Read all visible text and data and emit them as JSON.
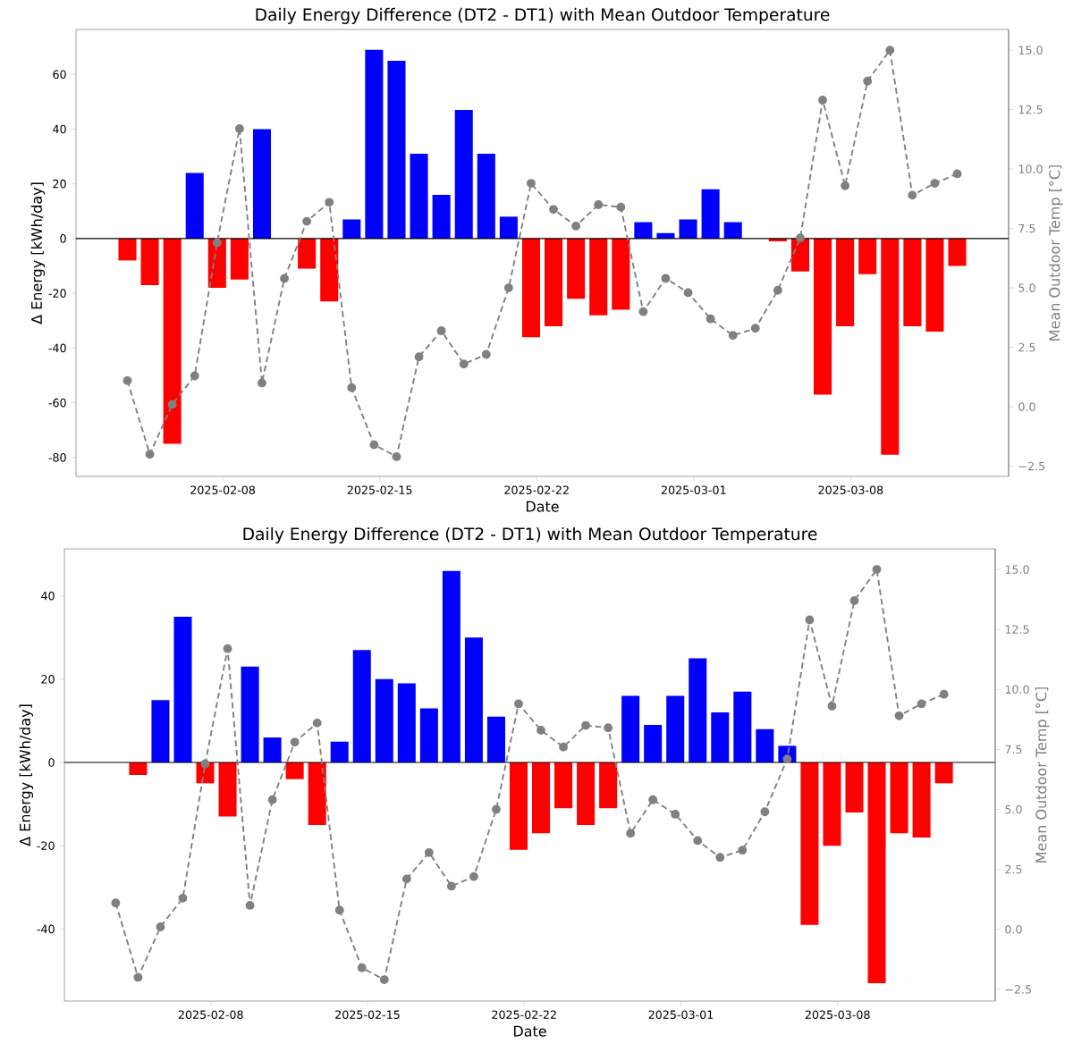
{
  "chart_data": [
    {
      "type": "bar",
      "title": "Daily Energy Difference (DT2 - DT1) with Mean Outdoor Temperature",
      "xlabel": "Date",
      "ylabel": "Δ Energy [kWh/day]",
      "y2label": "Mean Outdoor Temp [°C]",
      "x": [
        "2025-02-03T18:00",
        "2025-02-04T18:00",
        "2025-02-05T18:00",
        "2025-02-06T18:00",
        "2025-02-07T18:00",
        "2025-02-08T18:00",
        "2025-02-09T18:00",
        "2025-02-10T18:00",
        "2025-02-11T18:00",
        "2025-02-12T18:00",
        "2025-02-13T18:00",
        "2025-02-14T18:00",
        "2025-02-15T18:00",
        "2025-02-16T18:00",
        "2025-02-17T18:00",
        "2025-02-18T18:00",
        "2025-02-19T18:00",
        "2025-02-20T18:00",
        "2025-02-21T18:00",
        "2025-02-22T18:00",
        "2025-02-23T18:00",
        "2025-02-24T18:00",
        "2025-02-25T18:00",
        "2025-02-26T18:00",
        "2025-02-27T18:00",
        "2025-02-28T18:00",
        "2025-03-01T18:00",
        "2025-03-02T18:00",
        "2025-03-03T18:00",
        "2025-03-04T18:00",
        "2025-03-05T18:00",
        "2025-03-06T18:00",
        "2025-03-07T18:00",
        "2025-03-08T18:00",
        "2025-03-09T18:00",
        "2025-03-10T18:00",
        "2025-03-11T18:00",
        "2025-03-12T18:00"
      ],
      "xlim": [
        "2025-02-01T11:00",
        "2025-03-15T01:00"
      ],
      "xticks": [
        "2025-02-08",
        "2025-02-15",
        "2025-02-22",
        "2025-03-01",
        "2025-03-08"
      ],
      "ylim": [
        -86.9,
        76.4
      ],
      "yticks": [
        -80,
        -60,
        -40,
        -20,
        0,
        20,
        40,
        60
      ],
      "y2lim": [
        -2.93,
        15.87
      ],
      "y2ticks": [
        {
          "value": -2.5,
          "label": "−2.5"
        },
        {
          "value": 0,
          "label": "0.0"
        },
        {
          "value": 2.5,
          "label": "2.5"
        },
        {
          "value": 5,
          "label": "5.0"
        },
        {
          "value": 7.5,
          "label": "7.5"
        },
        {
          "value": 10,
          "label": "10.0"
        },
        {
          "value": 12.5,
          "label": "12.5"
        },
        {
          "value": 15,
          "label": "15.0"
        }
      ],
      "ref_lines": [
        {
          "axis": "y",
          "value": 0,
          "color": "#000000"
        }
      ],
      "series": [
        {
          "values": [
            -8,
            -17,
            -75,
            24,
            -18,
            -15,
            40,
            null,
            -11,
            -23,
            7,
            69,
            65,
            31,
            16,
            47,
            31,
            8,
            -36,
            -32,
            -22,
            -28,
            -26,
            6,
            2,
            7,
            18,
            6,
            null,
            -1,
            -12,
            -57,
            -32,
            -13,
            -79,
            -32,
            -34,
            -10
          ],
          "colors": [
            "#ff0000",
            "#ff0000",
            "#ff0000",
            "#0000ff",
            "#ff0000",
            "#ff0000",
            "#0000ff",
            null,
            "#ff0000",
            "#ff0000",
            "#0000ff",
            "#0000ff",
            "#0000ff",
            "#0000ff",
            "#0000ff",
            "#0000ff",
            "#0000ff",
            "#0000ff",
            "#ff0000",
            "#ff0000",
            "#ff0000",
            "#ff0000",
            "#ff0000",
            "#0000ff",
            "#0000ff",
            "#0000ff",
            "#0000ff",
            "#0000ff",
            null,
            "#ff0000",
            "#ff0000",
            "#ff0000",
            "#ff0000",
            "#ff0000",
            "#ff0000",
            "#ff0000",
            "#ff0000",
            "#ff0000"
          ]
        },
        {
          "type": "line",
          "axis": "y2",
          "color": "#808080",
          "marker": "circle",
          "line_style": "dashed",
          "values": [
            1.1,
            -2.0,
            0.1,
            1.3,
            6.9,
            11.7,
            1.0,
            5.4,
            7.8,
            8.6,
            0.8,
            -1.6,
            -2.1,
            2.1,
            3.2,
            1.8,
            2.2,
            5.0,
            9.4,
            8.3,
            7.6,
            8.5,
            8.4,
            4.0,
            5.4,
            4.8,
            3.7,
            3.0,
            3.3,
            4.9,
            7.1,
            12.9,
            9.3,
            13.7,
            15.0,
            8.9,
            9.4,
            9.8
          ]
        }
      ]
    },
    {
      "type": "bar",
      "title": "Daily Energy Difference (DT2 - DT1) with Mean Outdoor Temperature",
      "xlabel": "Date",
      "ylabel": "Δ Energy [kWh/day]",
      "y2label": "Mean Outdoor Temp [°C]",
      "x": [
        "2025-02-03T18:00",
        "2025-02-04T18:00",
        "2025-02-05T18:00",
        "2025-02-06T18:00",
        "2025-02-07T18:00",
        "2025-02-08T18:00",
        "2025-02-09T18:00",
        "2025-02-10T18:00",
        "2025-02-11T18:00",
        "2025-02-12T18:00",
        "2025-02-13T18:00",
        "2025-02-14T18:00",
        "2025-02-15T18:00",
        "2025-02-16T18:00",
        "2025-02-17T18:00",
        "2025-02-18T18:00",
        "2025-02-19T18:00",
        "2025-02-20T18:00",
        "2025-02-21T18:00",
        "2025-02-22T18:00",
        "2025-02-23T18:00",
        "2025-02-24T18:00",
        "2025-02-25T18:00",
        "2025-02-26T18:00",
        "2025-02-27T18:00",
        "2025-02-28T18:00",
        "2025-03-01T18:00",
        "2025-03-02T18:00",
        "2025-03-03T18:00",
        "2025-03-04T18:00",
        "2025-03-05T18:00",
        "2025-03-06T18:00",
        "2025-03-07T18:00",
        "2025-03-08T18:00",
        "2025-03-09T18:00",
        "2025-03-10T18:00",
        "2025-03-11T18:00",
        "2025-03-12T18:00"
      ],
      "xlim": [
        "2025-02-01T11:00",
        "2025-03-15T01:00"
      ],
      "xticks": [
        "2025-02-08",
        "2025-02-15",
        "2025-02-22",
        "2025-03-01",
        "2025-03-08"
      ],
      "ylim": [
        -57.3,
        51.3
      ],
      "yticks": [
        -40,
        -20,
        0,
        20,
        40
      ],
      "y2lim": [
        -2.99,
        15.86
      ],
      "y2ticks": [
        {
          "value": -2.5,
          "label": "−2.5"
        },
        {
          "value": 0,
          "label": "0.0"
        },
        {
          "value": 2.5,
          "label": "2.5"
        },
        {
          "value": 5,
          "label": "5.0"
        },
        {
          "value": 7.5,
          "label": "7.5"
        },
        {
          "value": 10,
          "label": "10.0"
        },
        {
          "value": 12.5,
          "label": "12.5"
        },
        {
          "value": 15,
          "label": "15.0"
        }
      ],
      "ref_lines": [
        {
          "axis": "y",
          "value": 0,
          "color": "#000000"
        }
      ],
      "series": [
        {
          "values": [
            null,
            -3,
            15,
            35,
            -5,
            -13,
            23,
            6,
            -4,
            -15,
            5,
            27,
            20,
            19,
            13,
            46,
            30,
            11,
            -21,
            -17,
            -11,
            -15,
            -11,
            16,
            9,
            16,
            25,
            12,
            17,
            8,
            4,
            -39,
            -20,
            -12,
            -53,
            -17,
            -18,
            -5
          ],
          "colors": [
            null,
            "#ff0000",
            "#0000ff",
            "#0000ff",
            "#ff0000",
            "#ff0000",
            "#0000ff",
            "#0000ff",
            "#ff0000",
            "#ff0000",
            "#0000ff",
            "#0000ff",
            "#0000ff",
            "#0000ff",
            "#0000ff",
            "#0000ff",
            "#0000ff",
            "#0000ff",
            "#ff0000",
            "#ff0000",
            "#ff0000",
            "#ff0000",
            "#ff0000",
            "#0000ff",
            "#0000ff",
            "#0000ff",
            "#0000ff",
            "#0000ff",
            "#0000ff",
            "#0000ff",
            "#0000ff",
            "#ff0000",
            "#ff0000",
            "#ff0000",
            "#ff0000",
            "#ff0000",
            "#ff0000",
            "#ff0000"
          ]
        },
        {
          "type": "line",
          "axis": "y2",
          "color": "#808080",
          "marker": "circle",
          "line_style": "dashed",
          "values": [
            1.1,
            -2.0,
            0.1,
            1.3,
            6.9,
            11.7,
            1.0,
            5.4,
            7.8,
            8.6,
            0.8,
            -1.6,
            -2.1,
            2.1,
            3.2,
            1.8,
            2.2,
            5.0,
            9.4,
            8.3,
            7.6,
            8.5,
            8.4,
            4.0,
            5.4,
            4.8,
            3.7,
            3.0,
            3.3,
            4.9,
            7.1,
            12.9,
            9.3,
            13.7,
            15.0,
            8.9,
            9.4,
            9.8
          ]
        }
      ]
    }
  ]
}
